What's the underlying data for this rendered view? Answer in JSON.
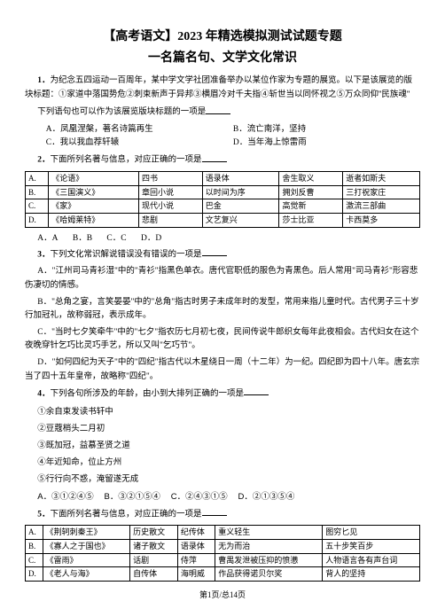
{
  "header": {
    "title": "【高考语文】2023 年精选模拟测试试题专题",
    "subtitle": "一名篇名句、文学文化常识"
  },
  "q1": {
    "num": "1．",
    "text_a": "为纪念五四运动一百周年，某中学文学社团准备举办以某位作家为专题的展览。以下是该展览的版块标题：",
    "text_b": "①家道中落国势危②刺束新声于异邦③横眉冷对千夫指④斩世当以同怀视之⑤万众同仰\"民族魂\"",
    "prompt": "下列语句也可以作为该展览版块标题的一项是",
    "A": "凤凰涅槃，著名诗篇再生",
    "B": "流亡南洋，坚持",
    "C": "我以我血荐轩辕",
    "D": "当年海上惊雷雨"
  },
  "q2": {
    "num": "2．",
    "prompt": "下面所列名著与信息，对应正确的一项是",
    "table": [
      [
        "A.",
        "《论语》",
        "四书",
        "语录体",
        "舍生取义",
        "逝者如斯夫"
      ],
      [
        "B.",
        "《三国演义》",
        "章回小说",
        "以时间为序",
        "拥刘反曹",
        "三打祝家庄"
      ],
      [
        "C.",
        "《家》",
        "现代小说",
        "巴金",
        "高觉新",
        "激流三部曲"
      ],
      [
        "D.",
        "《哈姆莱特》",
        "悲剧",
        "文艺复兴",
        "莎士比亚",
        "卡西莫多"
      ]
    ],
    "answers": [
      "A．A",
      "B．B",
      "C．C",
      "D．D"
    ]
  },
  "q3": {
    "num": "3．",
    "prompt": "下列文化常识解说错误没有错误的一项是",
    "A": "A．\"江州司马青衫湿\"中的\"青衫\"指黑色单衣。唐代官职低的服色为青黑色。后人常用\"司马青衫\"形容悲伤凄切的情感。",
    "B": "B．\"总角之宴，言笑晏晏\"中的\"总角\"指古时男子未成年时的发型，常用来指儿童时代。古代男子三十岁行加冠礼，故称弱冠，表示成年。",
    "C": "C．\"当时七夕笑牵牛\"中的\"七夕\"指农历七月初七夜，民间传说牛郎织女每年此夜相会。古代妇女在这个夜晚穿针乞巧比灵巧手艺，所以又叫\"乞巧节\"。",
    "D": "D．\"如何四纪为天子\"中的\"四纪\"指古代以木星绕日一周（十二年）为一纪。四纪即为四十八年。唐玄宗当了四十五年皇帝，故略称\"四纪\"。"
  },
  "q4": {
    "num": "4．",
    "prompt": "下列各句所涉及的年龄，由小到大排列正确的一项是",
    "items": [
      "①余自束发读书轩中",
      "②豆蔻梢头二月初",
      "③既加冠，益慕圣贤之道",
      "④年近知命，位止方州",
      "⑤行行向不惑，淹留遂无成"
    ],
    "A": "③①②④⑤",
    "B": "③②①⑤④",
    "C": "②④③①⑤",
    "D": "②①③⑤④",
    "C2": "②④③①⑤"
  },
  "q5": {
    "num": "5．",
    "prompt": "下面所列名著与信息，对应正确的一项是",
    "table": [
      [
        "A.",
        "《荆轲刺秦王》",
        "历史散文",
        "纪传体",
        "重义轻生",
        "图穷匕见"
      ],
      [
        "B.",
        "《寡人之于国也》",
        "诸子散文",
        "语录体",
        "无为而治",
        "五十步笑百步"
      ],
      [
        "C.",
        "《雷雨》",
        "话剧",
        "侍萍",
        "曹禺发泄被压抑的愤懑",
        "人物语言各有声台词"
      ],
      [
        "D.",
        "《老人与海》",
        "自传体",
        "海明威",
        "作品获得诺贝尔奖",
        "背人的坚持"
      ]
    ]
  },
  "footer": "第1页/总14页"
}
